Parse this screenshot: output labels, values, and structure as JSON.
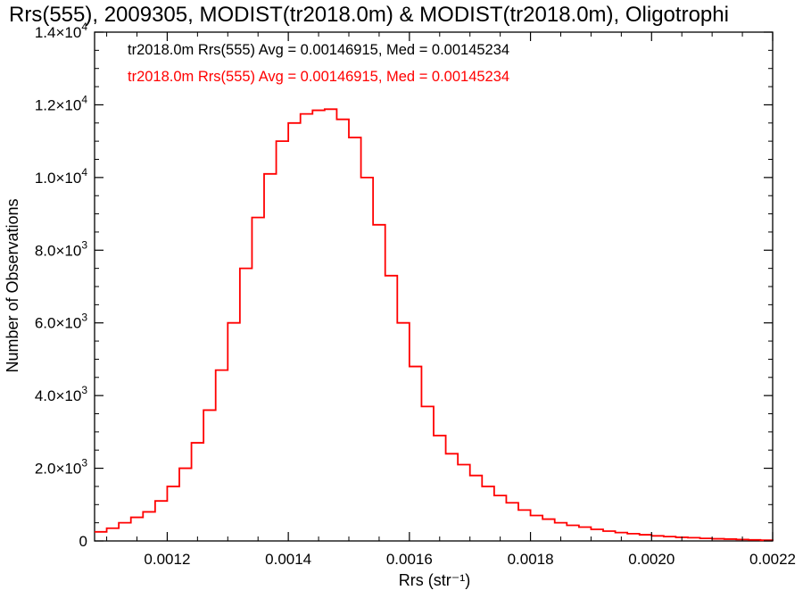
{
  "chart_data": {
    "type": "line",
    "title": "Rrs(555), 2009305, MODIST(tr2018.0m) & MODIST(tr2018.0m), Oligotrophi",
    "xlabel": "Rrs (str⁻¹)",
    "ylabel": "Number of Observations",
    "xlim": [
      0.00108,
      0.0022
    ],
    "ylim": [
      0,
      14000
    ],
    "x_ticks": [
      {
        "value": 0.0012,
        "label": "0.0012"
      },
      {
        "value": 0.0014,
        "label": "0.0014"
      },
      {
        "value": 0.0016,
        "label": "0.0016"
      },
      {
        "value": 0.0018,
        "label": "0.0018"
      },
      {
        "value": 0.002,
        "label": "0.0020"
      },
      {
        "value": 0.0022,
        "label": "0.0022"
      }
    ],
    "y_ticks": [
      {
        "value": 0,
        "mant": "0",
        "exp": ""
      },
      {
        "value": 2000,
        "mant": "2.0×10",
        "exp": "3"
      },
      {
        "value": 4000,
        "mant": "4.0×10",
        "exp": "3"
      },
      {
        "value": 6000,
        "mant": "6.0×10",
        "exp": "3"
      },
      {
        "value": 8000,
        "mant": "8.0×10",
        "exp": "3"
      },
      {
        "value": 10000,
        "mant": "1.0×10",
        "exp": "4"
      },
      {
        "value": 12000,
        "mant": "1.2×10",
        "exp": "4"
      },
      {
        "value": 14000,
        "mant": "1.4×10",
        "exp": "4"
      }
    ],
    "annotations": [
      {
        "text": "tr2018.0m Rrs(555) Avg = 0.00146915, Med = 0.00145234",
        "color": "#000000"
      },
      {
        "text": "tr2018.0m Rrs(555) Avg = 0.00146915, Med = 0.00145234",
        "color": "#ff0000"
      }
    ],
    "series": [
      {
        "color": "#ff0000",
        "style": "step",
        "x": [
          0.00108,
          0.0011,
          0.00112,
          0.00114,
          0.00116,
          0.00118,
          0.0012,
          0.00122,
          0.00124,
          0.00126,
          0.00128,
          0.0013,
          0.00132,
          0.00134,
          0.00136,
          0.00138,
          0.0014,
          0.00142,
          0.00144,
          0.00146,
          0.00148,
          0.0015,
          0.00152,
          0.00154,
          0.00156,
          0.00158,
          0.0016,
          0.00162,
          0.00164,
          0.00166,
          0.00168,
          0.0017,
          0.00172,
          0.00174,
          0.00176,
          0.00178,
          0.0018,
          0.00182,
          0.00184,
          0.00186,
          0.00188,
          0.0019,
          0.00192,
          0.00194,
          0.00196,
          0.00198,
          0.002,
          0.00202,
          0.00204,
          0.00206,
          0.00208,
          0.0021,
          0.00212,
          0.00214,
          0.00216,
          0.00218,
          0.0022
        ],
        "y": [
          250,
          350,
          500,
          650,
          800,
          1100,
          1500,
          2000,
          2700,
          3600,
          4700,
          6000,
          7500,
          8900,
          10100,
          11000,
          11500,
          11750,
          11850,
          11880,
          11600,
          11100,
          10000,
          8700,
          7300,
          6000,
          4800,
          3700,
          2900,
          2400,
          2100,
          1800,
          1500,
          1250,
          1050,
          850,
          700,
          600,
          500,
          430,
          380,
          320,
          270,
          230,
          200,
          170,
          140,
          120,
          100,
          90,
          70,
          60,
          50,
          40,
          30,
          20,
          0
        ]
      }
    ]
  }
}
